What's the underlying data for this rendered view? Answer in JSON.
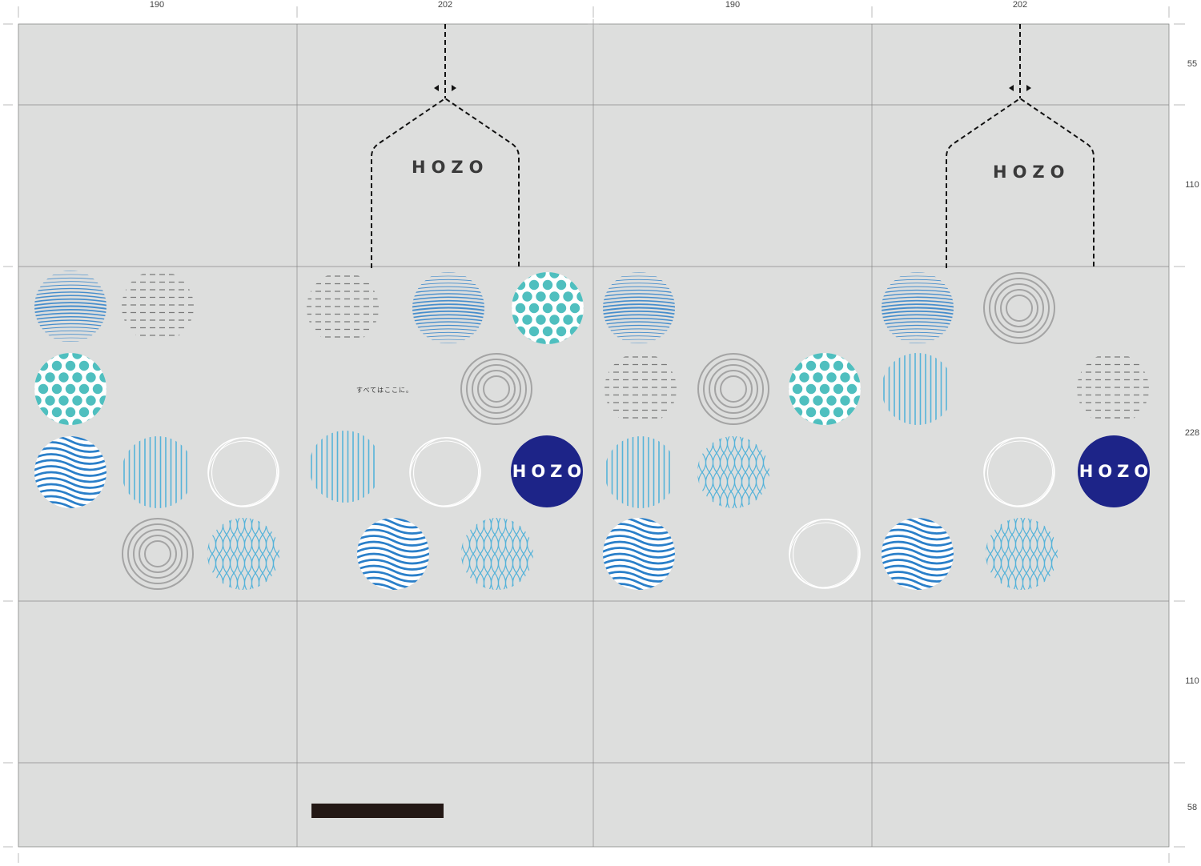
{
  "dimensions": {
    "top": [
      "190",
      "202",
      "190",
      "202"
    ],
    "right": [
      "55",
      "110",
      "228",
      "110",
      "58"
    ]
  },
  "panels": {
    "front_logo": "HOZO",
    "back_logo": "HOZO",
    "badge_left": "HOZO",
    "badge_right": "HOZO",
    "tagline": "すべてはここに。"
  },
  "colors": {
    "paper": "#dddedd",
    "navy": "#1d2488",
    "teal": "#4fbfbf",
    "blue": "#2a7fc9",
    "light_blue": "#56b3d9",
    "gray": "#9a9a9a",
    "white": "#ffffff",
    "bar": "#231815"
  },
  "patterns": [
    {
      "name": "striped-sphere",
      "color": "blue"
    },
    {
      "name": "dashed-lines",
      "color": "gray"
    },
    {
      "name": "polka-dot",
      "color": "teal"
    },
    {
      "name": "concentric-rings",
      "color": "gray"
    },
    {
      "name": "wave-lines",
      "color": "blue"
    },
    {
      "name": "vertical-stripes",
      "color": "light_blue"
    },
    {
      "name": "sketch-rings",
      "color": "white"
    },
    {
      "name": "diamond-mesh",
      "color": "light_blue"
    }
  ]
}
